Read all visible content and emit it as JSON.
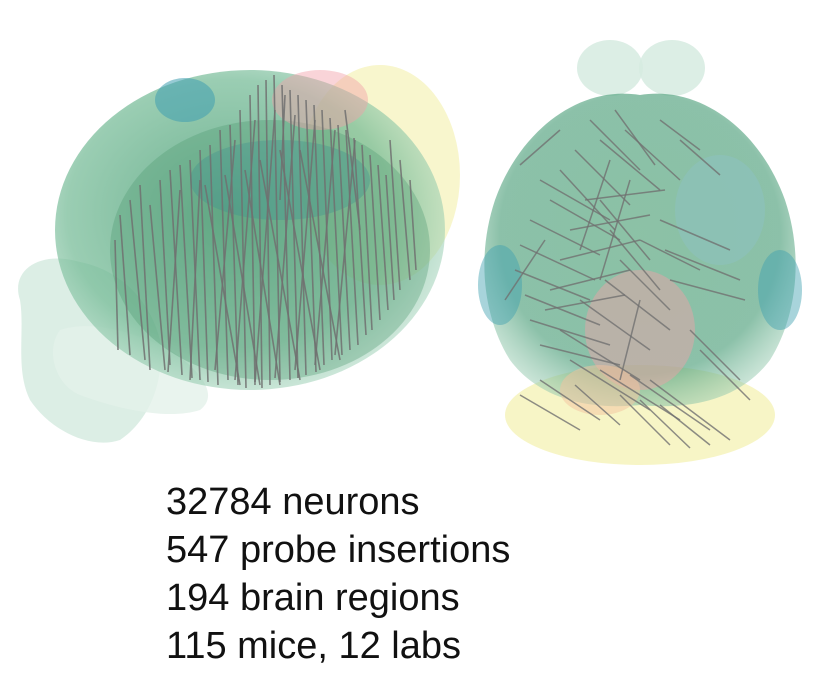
{
  "figure": {
    "views": [
      "sagittal-view",
      "dorsal-view"
    ],
    "colors": {
      "brain_green": "#5fae86",
      "brain_light": "#d6ebe0",
      "teal": "#3f9fb0",
      "pink": "#f2a0a8",
      "yellow": "#f5f2b8",
      "probe": "#707070"
    }
  },
  "stats": [
    "32784 neurons",
    "547 probe insertions",
    "194 brain regions",
    "115 mice, 12 labs"
  ]
}
